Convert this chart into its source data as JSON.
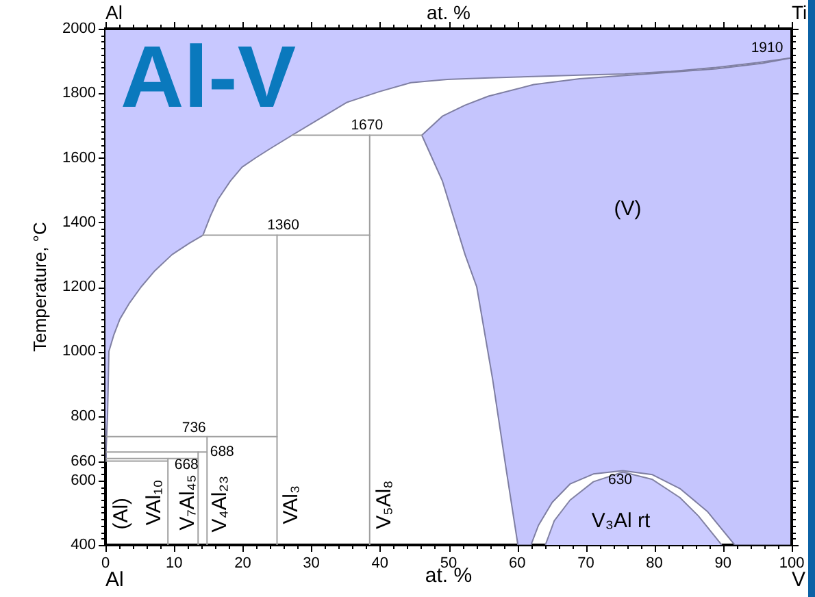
{
  "chart_data": {
    "type": "line",
    "title": "Al-V",
    "xlabel": "at. %",
    "x2label": "at. %",
    "ylabel": "Temperature, °C",
    "xlim": [
      0,
      100
    ],
    "ylim": [
      400,
      2000
    ],
    "xticks": [
      0,
      {
        "value": 2,
        "label": null
      },
      {
        "value": 4,
        "label": null
      },
      {
        "value": 6,
        "label": null
      },
      {
        "value": 8,
        "label": null
      },
      10,
      {
        "value": 12,
        "label": null
      },
      {
        "value": 14,
        "label": null
      },
      {
        "value": 16,
        "label": null
      },
      {
        "value": 18,
        "label": null
      },
      20,
      {
        "value": 22,
        "label": null
      },
      {
        "value": 24,
        "label": null
      },
      {
        "value": 26,
        "label": null
      },
      {
        "value": 28,
        "label": null
      },
      30,
      {
        "value": 32,
        "label": null
      },
      {
        "value": 34,
        "label": null
      },
      {
        "value": 36,
        "label": null
      },
      {
        "value": 38,
        "label": null
      },
      40,
      {
        "value": 42,
        "label": null
      },
      {
        "value": 44,
        "label": null
      },
      {
        "value": 46,
        "label": null
      },
      {
        "value": 48,
        "label": null
      },
      50,
      {
        "value": 52,
        "label": null
      },
      {
        "value": 54,
        "label": null
      },
      {
        "value": 56,
        "label": null
      },
      {
        "value": 58,
        "label": null
      },
      60,
      {
        "value": 62,
        "label": null
      },
      {
        "value": 64,
        "label": null
      },
      {
        "value": 66,
        "label": null
      },
      {
        "value": 68,
        "label": null
      },
      70,
      {
        "value": 72,
        "label": null
      },
      {
        "value": 74,
        "label": null
      },
      {
        "value": 76,
        "label": null
      },
      {
        "value": 78,
        "label": null
      },
      80,
      {
        "value": 82,
        "label": null
      },
      {
        "value": 84,
        "label": null
      },
      {
        "value": 86,
        "label": null
      },
      {
        "value": 88,
        "label": null
      },
      90,
      {
        "value": 92,
        "label": null
      },
      {
        "value": 94,
        "label": null
      },
      {
        "value": 96,
        "label": null
      },
      {
        "value": 98,
        "label": null
      },
      100
    ],
    "yticks": [
      400,
      {
        "value": 420,
        "label": null
      },
      {
        "value": 440,
        "label": null
      },
      {
        "value": 460,
        "label": null
      },
      {
        "value": 480,
        "label": null
      },
      {
        "value": 500,
        "label": null
      },
      {
        "value": 520,
        "label": null
      },
      {
        "value": 540,
        "label": null
      },
      {
        "value": 560,
        "label": null
      },
      {
        "value": 580,
        "label": null
      },
      600,
      {
        "value": 620,
        "label": null
      },
      {
        "value": 640,
        "label": null
      },
      660,
      {
        "value": 680,
        "label": null
      },
      {
        "value": 700,
        "label": null
      },
      {
        "value": 720,
        "label": null
      },
      {
        "value": 740,
        "label": null
      },
      {
        "value": 760,
        "label": null
      },
      {
        "value": 780,
        "label": null
      },
      800,
      {
        "value": 820,
        "label": null
      },
      {
        "value": 840,
        "label": null
      },
      {
        "value": 860,
        "label": null
      },
      {
        "value": 880,
        "label": null
      },
      {
        "value": 900,
        "label": null
      },
      {
        "value": 920,
        "label": null
      },
      {
        "value": 940,
        "label": null
      },
      {
        "value": 960,
        "label": null
      },
      {
        "value": 980,
        "label": null
      },
      1000,
      {
        "value": 1020,
        "label": null
      },
      {
        "value": 1040,
        "label": null
      },
      {
        "value": 1060,
        "label": null
      },
      {
        "value": 1080,
        "label": null
      },
      {
        "value": 1100,
        "label": null
      },
      {
        "value": 1120,
        "label": null
      },
      {
        "value": 1140,
        "label": null
      },
      {
        "value": 1160,
        "label": null
      },
      {
        "value": 1180,
        "label": null
      },
      1200,
      {
        "value": 1220,
        "label": null
      },
      {
        "value": 1240,
        "label": null
      },
      {
        "value": 1260,
        "label": null
      },
      {
        "value": 1280,
        "label": null
      },
      {
        "value": 1300,
        "label": null
      },
      {
        "value": 1320,
        "label": null
      },
      {
        "value": 1340,
        "label": null
      },
      {
        "value": 1360,
        "label": null
      },
      {
        "value": 1380,
        "label": null
      },
      1400,
      {
        "value": 1420,
        "label": null
      },
      {
        "value": 1440,
        "label": null
      },
      {
        "value": 1460,
        "label": null
      },
      {
        "value": 1480,
        "label": null
      },
      {
        "value": 1500,
        "label": null
      },
      {
        "value": 1520,
        "label": null
      },
      {
        "value": 1540,
        "label": null
      },
      {
        "value": 1560,
        "label": null
      },
      {
        "value": 1580,
        "label": null
      },
      1600,
      {
        "value": 1620,
        "label": null
      },
      {
        "value": 1640,
        "label": null
      },
      {
        "value": 1660,
        "label": null
      },
      {
        "value": 1680,
        "label": null
      },
      {
        "value": 1700,
        "label": null
      },
      {
        "value": 1720,
        "label": null
      },
      {
        "value": 1740,
        "label": null
      },
      {
        "value": 1760,
        "label": null
      },
      {
        "value": 1780,
        "label": null
      },
      1800,
      {
        "value": 1820,
        "label": null
      },
      {
        "value": 1840,
        "label": null
      },
      {
        "value": 1860,
        "label": null
      },
      {
        "value": 1880,
        "label": null
      },
      {
        "value": 1900,
        "label": null
      },
      {
        "value": 1920,
        "label": null
      },
      {
        "value": 1940,
        "label": null
      },
      {
        "value": 1960,
        "label": null
      },
      {
        "value": 1980,
        "label": null
      },
      2000
    ],
    "series": [
      {
        "type": "area",
        "color": "#c8c8ff",
        "x": [
          0,
          0.1,
          0.3,
          0.5,
          1.2,
          2.1,
          3.5,
          5.2,
          7.2,
          9.7,
          12.2,
          14.2,
          15.3,
          16.4,
          18.2,
          19.9,
          21.9,
          23.9,
          27.2,
          30.5,
          35.2,
          39.9,
          44.5,
          49.8,
          56,
          62.4,
          69,
          75.7,
          82.4,
          89,
          95,
          100,
          100,
          0
        ],
        "values": [
          660,
          700,
          800,
          1000,
          1050,
          1100,
          1150,
          1200,
          1250,
          1300,
          1335,
          1360,
          1420,
          1471,
          1528,
          1571,
          1600,
          1627,
          1670,
          1712,
          1772,
          1805,
          1833,
          1843,
          1848,
          1852,
          1856,
          1860,
          1868,
          1880,
          1895,
          1910,
          2000,
          2000
        ]
      },
      {
        "type": "area",
        "color": "#c5c5fd",
        "x": [
          46.1,
          49.1,
          52.4,
          55.8,
          62.4,
          69.1,
          75.7,
          82.4,
          89,
          95.7,
          100,
          100,
          91.7,
          87.7,
          83.7,
          79.7,
          75.4,
          71.1,
          67.7,
          65.1,
          63.1,
          62,
          60.1,
          58.4,
          56.4,
          54.1,
          52.4,
          49.1,
          46.1
        ],
        "values": [
          1670,
          1729,
          1763,
          1791,
          1827,
          1845,
          1855,
          1865,
          1876,
          1893,
          1910,
          400,
          400,
          504,
          575,
          618,
          630,
          620,
          589,
          532,
          461,
          400,
          400,
          633,
          916,
          1200,
          1300,
          1528,
          1670
        ]
      },
      {
        "type": "area",
        "color": "#cbcbff",
        "x": [
          64.1,
          65.4,
          67.7,
          71.1,
          75.4,
          79.7,
          83.7,
          86.4,
          89.8
        ],
        "values": [
          400,
          475,
          539,
          596,
          626,
          603,
          547,
          490,
          400
        ]
      },
      {
        "color": "#a0a0a0",
        "x": [
          0,
          9.1
        ],
        "values": [
          660,
          660
        ]
      },
      {
        "color": "#a0a0a0",
        "x": [
          0,
          13.5
        ],
        "values": [
          668,
          668
        ]
      },
      {
        "color": "#a0a0a0",
        "x": [
          0,
          14.8
        ],
        "values": [
          688,
          688
        ]
      },
      {
        "color": "#a0a0a0",
        "x": [
          0,
          25
        ],
        "values": [
          736,
          736
        ]
      },
      {
        "color": "#a0a0a0",
        "x": [
          14.2,
          38.5
        ],
        "values": [
          1360,
          1360
        ]
      },
      {
        "color": "#a0a0a0",
        "x": [
          27.2,
          46.1
        ],
        "values": [
          1670,
          1670
        ]
      },
      {
        "color": "#a0a0a0",
        "x": [
          9.1,
          9.1
        ],
        "values": [
          400,
          668
        ]
      },
      {
        "color": "#a0a0a0",
        "x": [
          13.5,
          13.5
        ],
        "values": [
          400,
          688
        ]
      },
      {
        "color": "#a0a0a0",
        "x": [
          14.8,
          14.8
        ],
        "values": [
          400,
          736
        ]
      },
      {
        "color": "#a0a0a0",
        "x": [
          25,
          25
        ],
        "values": [
          400,
          1360
        ]
      },
      {
        "color": "#a0a0a0",
        "x": [
          38.5,
          38.5
        ],
        "values": [
          400,
          1670
        ]
      }
    ],
    "annotations": [
      "Al",
      "Ti",
      "Al",
      "V",
      {
        "text": "1910",
        "x": 100,
        "y": 1910
      },
      {
        "text": "1670",
        "x": 38.1,
        "y": 1670
      },
      {
        "text": "1360",
        "x": 25.9,
        "y": 1360
      },
      {
        "text": "736",
        "x": 12.9,
        "y": 736
      },
      {
        "text": "688",
        "x": 14.8,
        "y": 688
      },
      {
        "text": "668",
        "x": 11.8,
        "y": 668
      },
      {
        "text": "630",
        "x": 75.4,
        "y": 630
      },
      "(Al)",
      "VAl₁₀",
      "V₇Al₄₅",
      "V₄Al₂₃",
      "VAl₃",
      "V₅Al₈",
      "(V)",
      "V₃Al rt"
    ]
  }
}
